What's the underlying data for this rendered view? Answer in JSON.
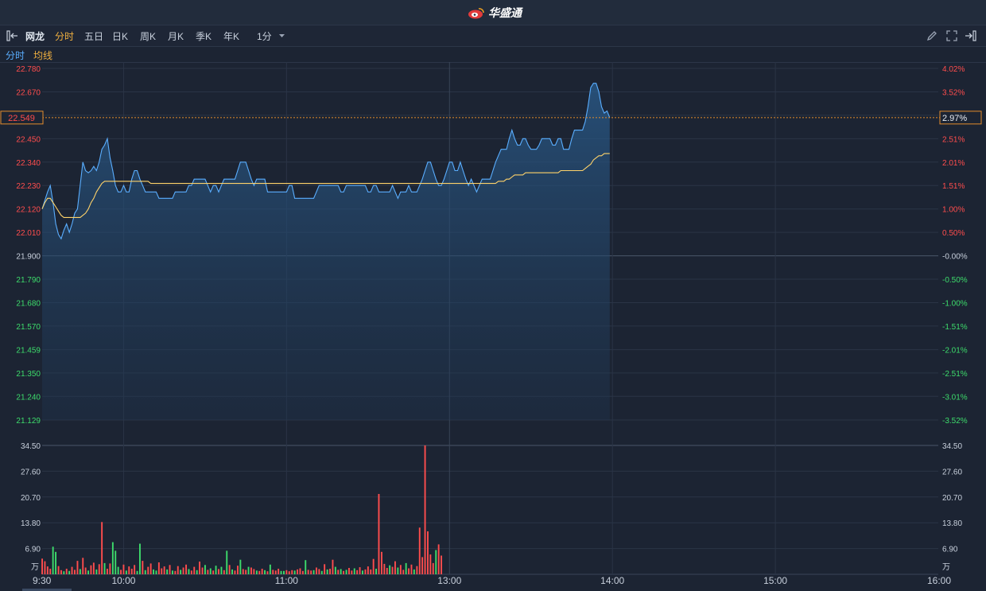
{
  "header": {
    "brand": "华盛通"
  },
  "toolbar": {
    "stock_name": "网龙",
    "tabs": [
      "分时",
      "五日",
      "日K",
      "周K",
      "月K",
      "季K",
      "年K"
    ],
    "active_tab": "分时",
    "interval": "1分"
  },
  "legend": {
    "time_label": "分时",
    "avg_label": "均线"
  },
  "colors": {
    "up": "#ff4d4d",
    "down": "#3ddc6b",
    "price_line": "#5aaeff",
    "avg_line": "#ffd36a",
    "crosshair": "#e38c2c"
  },
  "current": {
    "price": "22.549",
    "pct": "2.97%"
  },
  "chart_data": {
    "type": "line",
    "prev_close": 21.9,
    "price_ticks": [
      "22.780",
      "22.670",
      "22.560",
      "22.450",
      "22.340",
      "22.230",
      "22.120",
      "22.010",
      "21.900",
      "21.790",
      "21.680",
      "21.570",
      "21.459",
      "21.350",
      "21.240",
      "21.129"
    ],
    "price_tick_labels_visible": [
      "22.780",
      "22.670",
      "",
      "22.450",
      "22.340",
      "22.230",
      "22.120",
      "22.010",
      "21.900",
      "21.790",
      "21.680",
      "21.570",
      "21.459",
      "21.350",
      "21.240",
      "21.129"
    ],
    "pct_ticks": [
      "4.02%",
      "3.52%",
      "",
      "2.51%",
      "2.01%",
      "1.51%",
      "1.00%",
      "0.50%",
      "-0.00%",
      "-0.50%",
      "-1.00%",
      "-1.51%",
      "-2.01%",
      "-2.51%",
      "-3.01%",
      "-3.52%"
    ],
    "ylim": [
      21.129,
      22.78
    ],
    "volume_ticks": [
      "34.50",
      "27.60",
      "20.70",
      "13.80",
      "6.90"
    ],
    "volume_unit": "万",
    "volume_ylim": [
      0,
      34.5
    ],
    "x_ticks": [
      "9:30",
      "10:00",
      "11:00",
      "13:00",
      "14:00",
      "15:00",
      "16:00"
    ],
    "x_minutes_total": 330,
    "price": [
      22.12,
      22.16,
      22.2,
      22.23,
      22.15,
      22.05,
      22.0,
      21.98,
      22.02,
      22.05,
      22.01,
      22.05,
      22.1,
      22.12,
      22.23,
      22.34,
      22.3,
      22.29,
      22.3,
      22.32,
      22.3,
      22.34,
      22.4,
      22.42,
      22.45,
      22.36,
      22.3,
      22.23,
      22.2,
      22.2,
      22.23,
      22.2,
      22.2,
      22.26,
      22.3,
      22.3,
      22.26,
      22.23,
      22.2,
      22.2,
      22.2,
      22.2,
      22.2,
      22.17,
      22.17,
      22.17,
      22.17,
      22.17,
      22.17,
      22.2,
      22.2,
      22.2,
      22.2,
      22.2,
      22.23,
      22.23,
      22.26,
      22.26,
      22.26,
      22.26,
      22.26,
      22.23,
      22.2,
      22.23,
      22.23,
      22.2,
      22.23,
      22.26,
      22.26,
      22.26,
      22.26,
      22.26,
      22.3,
      22.34,
      22.34,
      22.34,
      22.3,
      22.26,
      22.23,
      22.26,
      22.26,
      22.26,
      22.26,
      22.2,
      22.2,
      22.2,
      22.2,
      22.2,
      22.2,
      22.2,
      22.2,
      22.23,
      22.23,
      22.17,
      22.17,
      22.17,
      22.17,
      22.17,
      22.17,
      22.17,
      22.17,
      22.2,
      22.23,
      22.23,
      22.23,
      22.23,
      22.23,
      22.23,
      22.23,
      22.23,
      22.2,
      22.2,
      22.23,
      22.23,
      22.23,
      22.23,
      22.23,
      22.23,
      22.23,
      22.23,
      22.2,
      22.2,
      22.23,
      22.23,
      22.2,
      22.2,
      22.2,
      22.2,
      22.2,
      22.23,
      22.2,
      22.17,
      22.2,
      22.2,
      22.2,
      22.23,
      22.2,
      22.2,
      22.2,
      22.23,
      22.26,
      22.3,
      22.34,
      22.34,
      22.3,
      22.26,
      22.23,
      22.23,
      22.26,
      22.3,
      22.34,
      22.34,
      22.3,
      22.3,
      22.34,
      22.3,
      22.26,
      22.23,
      22.26,
      22.23,
      22.2,
      22.23,
      22.26,
      22.26,
      22.26,
      22.26,
      22.3,
      22.34,
      22.37,
      22.4,
      22.4,
      22.4,
      22.45,
      22.49,
      22.45,
      22.42,
      22.42,
      22.45,
      22.45,
      22.42,
      22.4,
      22.4,
      22.4,
      22.42,
      22.45,
      22.45,
      22.45,
      22.45,
      22.42,
      22.42,
      22.45,
      22.45,
      22.4,
      22.4,
      22.4,
      22.45,
      22.49,
      22.49,
      22.49,
      22.49,
      22.53,
      22.6,
      22.69,
      22.71,
      22.71,
      22.67,
      22.6,
      22.57,
      22.58,
      22.549
    ],
    "avg": [
      22.12,
      22.15,
      22.17,
      22.17,
      22.15,
      22.13,
      22.11,
      22.09,
      22.08,
      22.08,
      22.08,
      22.08,
      22.08,
      22.08,
      22.08,
      22.09,
      22.1,
      22.12,
      22.15,
      22.17,
      22.2,
      22.22,
      22.24,
      22.25,
      22.25,
      22.25,
      22.25,
      22.25,
      22.25,
      22.25,
      22.25,
      22.25,
      22.25,
      22.25,
      22.25,
      22.25,
      22.25,
      22.25,
      22.25,
      22.25,
      22.24,
      22.24,
      22.24,
      22.24,
      22.24,
      22.24,
      22.24,
      22.24,
      22.24,
      22.24,
      22.24,
      22.24,
      22.24,
      22.24,
      22.24,
      22.24,
      22.24,
      22.24,
      22.24,
      22.24,
      22.24,
      22.24,
      22.24,
      22.24,
      22.24,
      22.24,
      22.24,
      22.24,
      22.24,
      22.24,
      22.24,
      22.24,
      22.24,
      22.24,
      22.24,
      22.24,
      22.24,
      22.24,
      22.24,
      22.24,
      22.24,
      22.24,
      22.24,
      22.24,
      22.24,
      22.24,
      22.24,
      22.24,
      22.24,
      22.24,
      22.24,
      22.24,
      22.24,
      22.24,
      22.24,
      22.24,
      22.24,
      22.24,
      22.24,
      22.24,
      22.24,
      22.24,
      22.24,
      22.24,
      22.24,
      22.24,
      22.24,
      22.24,
      22.24,
      22.24,
      22.24,
      22.24,
      22.24,
      22.24,
      22.24,
      22.24,
      22.24,
      22.24,
      22.24,
      22.24,
      22.24,
      22.24,
      22.24,
      22.24,
      22.24,
      22.24,
      22.24,
      22.24,
      22.24,
      22.24,
      22.24,
      22.24,
      22.24,
      22.24,
      22.24,
      22.24,
      22.24,
      22.24,
      22.24,
      22.24,
      22.24,
      22.24,
      22.24,
      22.24,
      22.24,
      22.24,
      22.24,
      22.24,
      22.24,
      22.24,
      22.24,
      22.24,
      22.24,
      22.24,
      22.24,
      22.24,
      22.24,
      22.24,
      22.24,
      22.24,
      22.24,
      22.24,
      22.24,
      22.24,
      22.24,
      22.24,
      22.24,
      22.24,
      22.25,
      22.25,
      22.25,
      22.26,
      22.26,
      22.27,
      22.28,
      22.28,
      22.28,
      22.28,
      22.29,
      22.29,
      22.29,
      22.29,
      22.29,
      22.29,
      22.29,
      22.29,
      22.29,
      22.29,
      22.29,
      22.29,
      22.29,
      22.3,
      22.3,
      22.3,
      22.3,
      22.3,
      22.3,
      22.3,
      22.3,
      22.3,
      22.31,
      22.32,
      22.33,
      22.35,
      22.36,
      22.37,
      22.37,
      22.38,
      22.38,
      22.38
    ],
    "volume": [
      4.2,
      3.5,
      2.1,
      1.5,
      7.4,
      6.0,
      2.2,
      1.1,
      0.8,
      1.5,
      0.9,
      2.0,
      1.2,
      3.6,
      1.4,
      4.4,
      1.8,
      1.0,
      2.4,
      3.1,
      1.3,
      2.7,
      14.0,
      3.0,
      1.5,
      2.9,
      8.6,
      6.3,
      2.0,
      1.2,
      2.6,
      1.0,
      2.1,
      1.5,
      2.5,
      0.9,
      8.2,
      3.6,
      1.1,
      2.0,
      2.9,
      1.3,
      1.0,
      3.2,
      1.6,
      2.1,
      1.3,
      2.5,
      1.0,
      0.9,
      2.2,
      1.2,
      1.8,
      2.6,
      1.4,
      1.0,
      2.0,
      1.1,
      3.4,
      1.8,
      2.5,
      1.2,
      1.6,
      1.0,
      2.3,
      1.4,
      2.0,
      1.1,
      6.3,
      2.5,
      1.3,
      1.0,
      2.3,
      3.9,
      1.4,
      1.2,
      2.0,
      1.8,
      1.4,
      1.0,
      0.9,
      1.5,
      1.1,
      0.8,
      2.6,
      1.2,
      1.0,
      1.5,
      0.9,
      0.9,
      1.1,
      0.8,
      1.1,
      1.0,
      1.3,
      1.6,
      0.9,
      3.8,
      1.2,
      1.0,
      1.1,
      1.8,
      1.4,
      0.9,
      2.7,
      1.3,
      1.5,
      3.9,
      2.0,
      1.2,
      1.4,
      0.9,
      1.2,
      1.7,
      1.0,
      1.6,
      1.1,
      1.9,
      1.0,
      1.3,
      2.1,
      1.3,
      4.1,
      1.5,
      21.5,
      6.0,
      2.8,
      1.7,
      2.4,
      2.0,
      3.5,
      1.8,
      2.5,
      1.2,
      3.0,
      1.6,
      2.6,
      1.3,
      2.2,
      12.5,
      4.6,
      34.5,
      11.5,
      5.3,
      3.0,
      6.5,
      8.0,
      5.0
    ],
    "volume_up": [
      true,
      true,
      true,
      true,
      false,
      false,
      true,
      true,
      false,
      true,
      false,
      true,
      true,
      true,
      false,
      true,
      true,
      false,
      true,
      true,
      false,
      true,
      true,
      false,
      true,
      true,
      false,
      false,
      false,
      true,
      true,
      false,
      true,
      true,
      true,
      false,
      false,
      true,
      false,
      true,
      true,
      false,
      false,
      true,
      true,
      true,
      false,
      true,
      false,
      true,
      true,
      false,
      true,
      true,
      false,
      true,
      true,
      false,
      true,
      true,
      false,
      true,
      false,
      true,
      false,
      true,
      false,
      true,
      false,
      true,
      false,
      true,
      true,
      false,
      true,
      true,
      false,
      true,
      true,
      false,
      true,
      true,
      false,
      true,
      false,
      true,
      true,
      true,
      false,
      false,
      true,
      true,
      true,
      false,
      true,
      true,
      true,
      false,
      true,
      true,
      false,
      true,
      true,
      false,
      true,
      false,
      true,
      true,
      false,
      true,
      false,
      true,
      false,
      true,
      true,
      false,
      true,
      true,
      false,
      true,
      true,
      true,
      true,
      false,
      true,
      true,
      true,
      true,
      false,
      true,
      true,
      false,
      true,
      true,
      false,
      true,
      true,
      false,
      true,
      true,
      true,
      true,
      true,
      true,
      true,
      false,
      true,
      true,
      false
    ]
  }
}
